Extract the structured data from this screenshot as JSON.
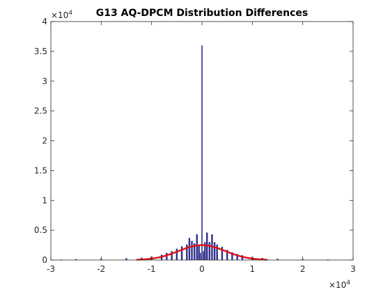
{
  "chart_data": {
    "type": "bar",
    "title": "G13 AQ-DPCM Distribution Differences",
    "xlabel": "",
    "ylabel": "",
    "xlim": [
      -30000,
      30000
    ],
    "ylim": [
      0,
      40000
    ],
    "x_ticks": [
      -30000,
      -20000,
      -10000,
      0,
      10000,
      20000,
      30000
    ],
    "x_tick_labels": [
      "-3",
      "-2",
      "-1",
      "0",
      "1",
      "2",
      "3"
    ],
    "y_ticks": [
      0,
      5000,
      10000,
      15000,
      20000,
      25000,
      30000,
      35000,
      40000
    ],
    "y_tick_labels": [
      "0",
      "0.5",
      "1",
      "1.5",
      "2",
      "2.5",
      "3",
      "3.5",
      "4"
    ],
    "x_exponent_label": "×10",
    "x_exponent_power": "4",
    "y_exponent_label": "×10",
    "y_exponent_power": "4",
    "grid": false,
    "legend": "none",
    "colors": {
      "histogram": "#2e2e8c",
      "fit": "#e01010",
      "axes": "#262626"
    },
    "series": [
      {
        "kind": "histogram",
        "x": [
          -28000,
          -25000,
          -20000,
          -15000,
          -12000,
          -10000,
          -8000,
          -7000,
          -6000,
          -5000,
          -4000,
          -3000,
          -2500,
          -2000,
          -1500,
          -1000,
          -600,
          -300,
          0,
          300,
          600,
          1000,
          1500,
          2000,
          2500,
          3000,
          4000,
          5000,
          6000,
          7000,
          8000,
          10000,
          12000,
          15000,
          20000,
          25000
        ],
        "values": [
          100,
          150,
          200,
          300,
          400,
          600,
          900,
          1200,
          1500,
          1900,
          2300,
          2600,
          3700,
          3200,
          2800,
          4300,
          2500,
          1200,
          36000,
          1500,
          3000,
          4600,
          3000,
          4300,
          3000,
          2600,
          2200,
          1700,
          1300,
          1000,
          800,
          500,
          350,
          200,
          150,
          100
        ]
      },
      {
        "kind": "gaussian-fit",
        "peak": 2500,
        "center": 0,
        "sigma": 4600,
        "x_range": [
          -13000,
          13000
        ]
      }
    ]
  }
}
